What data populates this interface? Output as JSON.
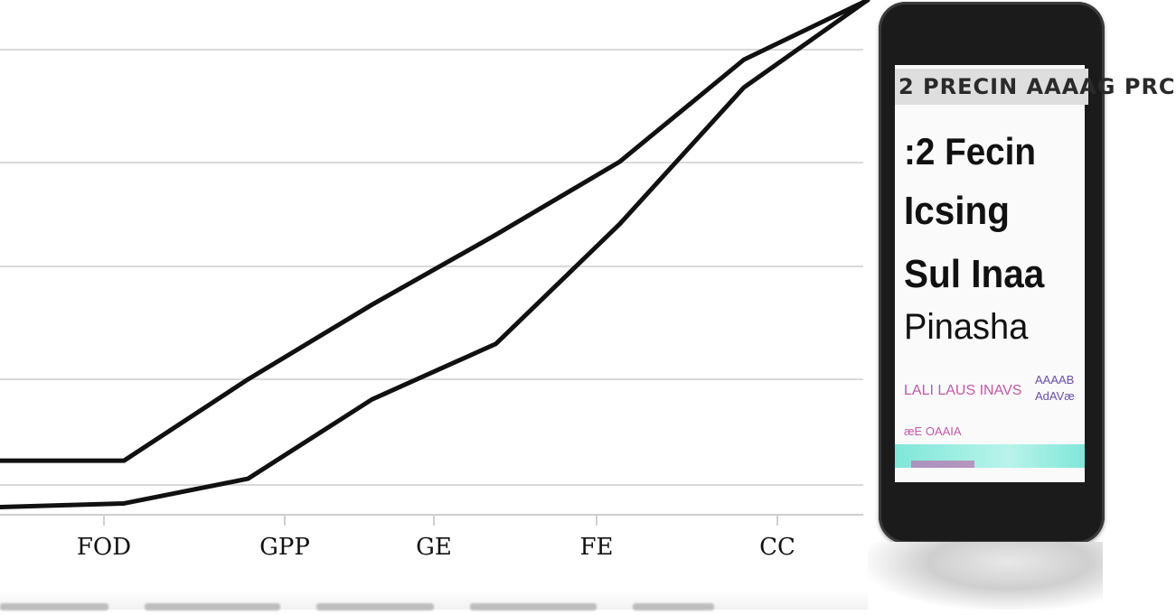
{
  "chart_data": {
    "type": "line",
    "categories": [
      "FOD",
      "GPP",
      "GE",
      "FE",
      "CC"
    ],
    "x": [
      0,
      1,
      2,
      3,
      4,
      5,
      6,
      7
    ],
    "xlim": [
      0,
      7
    ],
    "ylim": [
      0,
      100
    ],
    "grid": true,
    "series": [
      {
        "values": [
          10.5,
          10.5,
          26.3,
          40.8,
          54.4,
          68.6,
          88.4,
          100
        ]
      },
      {
        "values": [
          1.5,
          2.2,
          7.0,
          22.4,
          33.2,
          56.5,
          83.0,
          100
        ]
      }
    ],
    "title": "",
    "xlabel": "",
    "ylabel": "",
    "line_color": "#111111",
    "grid_color": "#d9d9d9"
  },
  "phone": {
    "header": "2 PRECIN AAAAG PRC",
    "lines": [
      ":2 Fecin",
      "Icsing",
      "Sul Inaa",
      "Pinasha"
    ],
    "caption_a": "LALI LAUS INAVS",
    "caption_b": "AAAAB\nAdAVæ",
    "caption_c": "æE OAAIA",
    "accent_color": "#7fe7d8",
    "body_color": "#1b1b1b"
  }
}
